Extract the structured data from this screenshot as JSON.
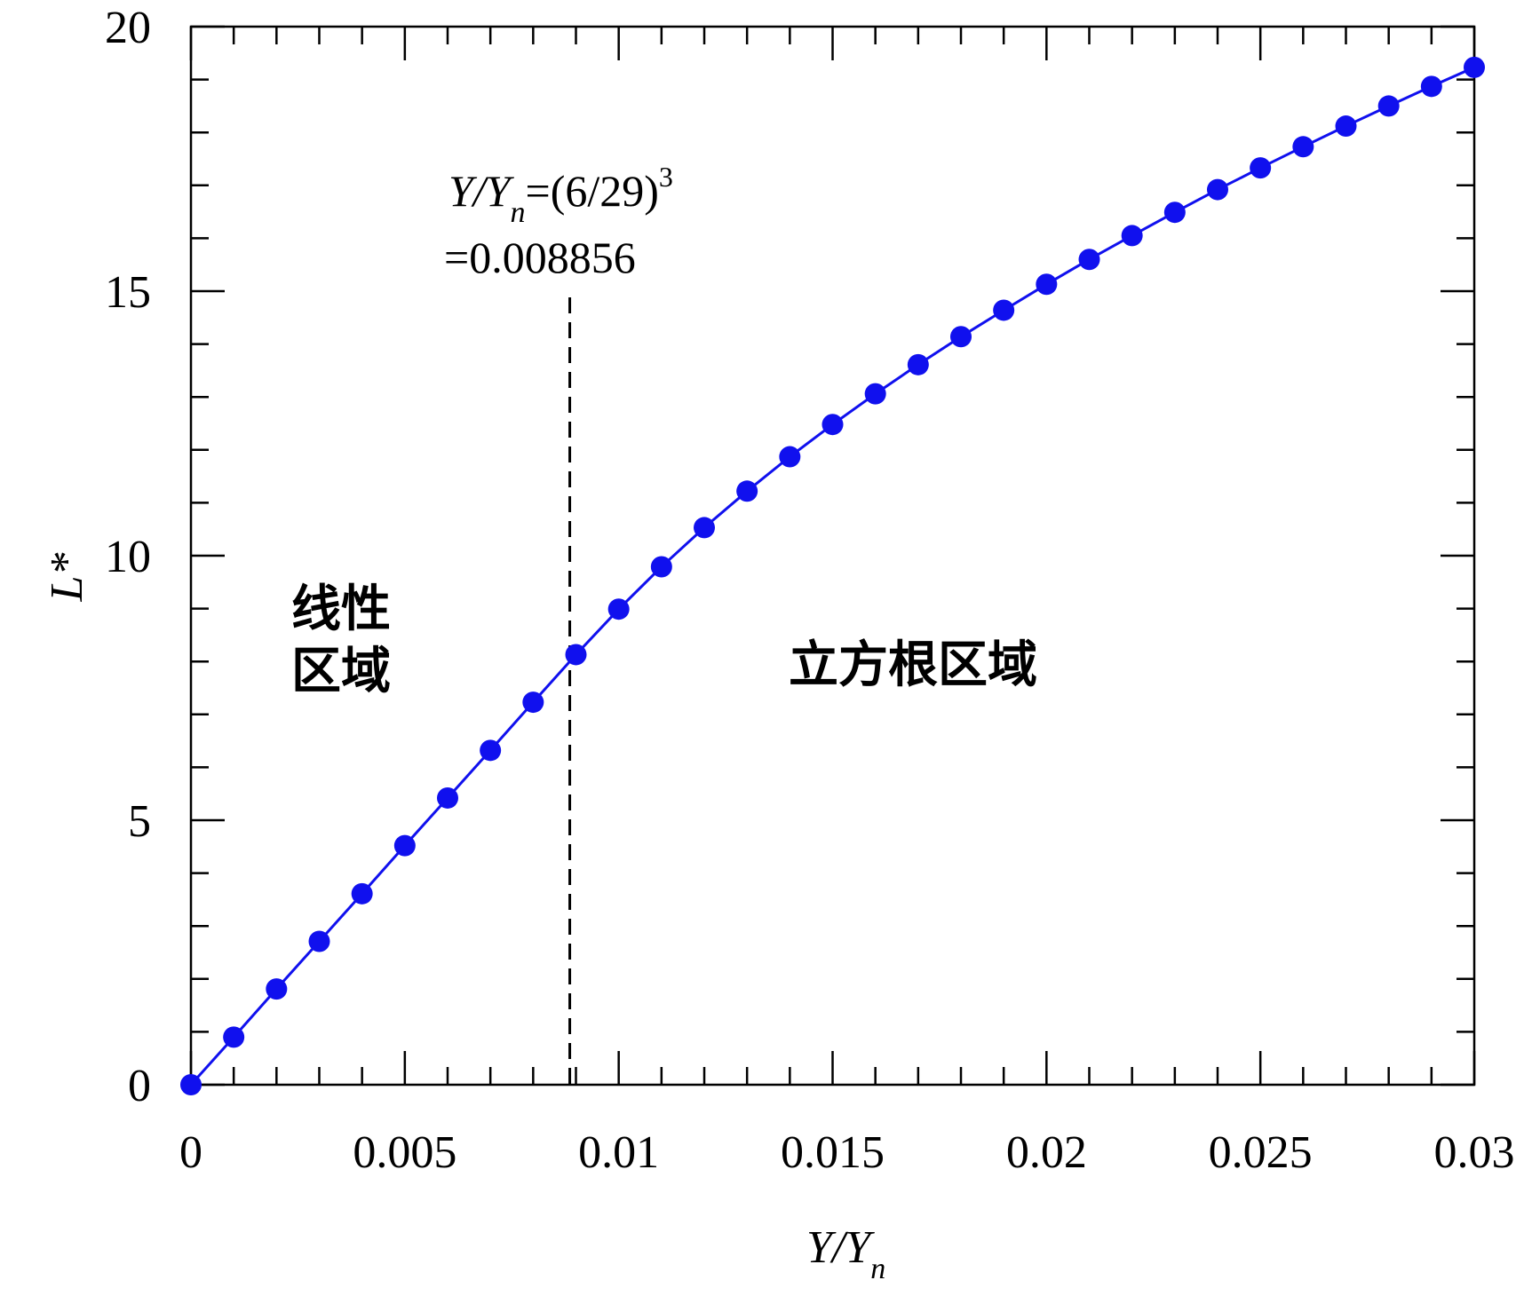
{
  "chart_data": {
    "type": "line",
    "title": "",
    "xlabel": {
      "base": "Y/Y",
      "sub": "n"
    },
    "ylabel": "L*",
    "xlim": [
      0,
      0.03
    ],
    "ylim": [
      0,
      20
    ],
    "grid": false,
    "x_ticks": [
      {
        "value": 0,
        "label": "0"
      },
      {
        "value": 0.005,
        "label": "0.005"
      },
      {
        "value": 0.01,
        "label": "0.01"
      },
      {
        "value": 0.015,
        "label": "0.015"
      },
      {
        "value": 0.02,
        "label": "0.02"
      },
      {
        "value": 0.025,
        "label": "0.025"
      },
      {
        "value": 0.03,
        "label": "0.03"
      }
    ],
    "x_minor_step": 0.001,
    "y_ticks": [
      {
        "value": 0,
        "label": "0"
      },
      {
        "value": 5,
        "label": "5"
      },
      {
        "value": 10,
        "label": "10"
      },
      {
        "value": 15,
        "label": "15"
      },
      {
        "value": 20,
        "label": "20"
      }
    ],
    "y_minor_step": 1,
    "series": [
      {
        "color": "#1010ee",
        "x": [
          0,
          0.001,
          0.002,
          0.003,
          0.004,
          0.005,
          0.006,
          0.007,
          0.008,
          0.009,
          0.01,
          0.011,
          0.012,
          0.013,
          0.014,
          0.015,
          0.016,
          0.017,
          0.018,
          0.019,
          0.02,
          0.021,
          0.022,
          0.023,
          0.024,
          0.025,
          0.026,
          0.027,
          0.028,
          0.029,
          0.03
        ],
        "y": [
          0,
          0.9,
          1.81,
          2.71,
          3.61,
          4.52,
          5.42,
          6.32,
          7.23,
          8.13,
          8.99,
          9.79,
          10.53,
          11.22,
          11.87,
          12.48,
          13.06,
          13.61,
          14.14,
          14.64,
          15.13,
          15.6,
          16.05,
          16.49,
          16.92,
          17.33,
          17.73,
          18.12,
          18.5,
          18.87,
          19.23
        ]
      }
    ],
    "threshold": {
      "x": 0.008856,
      "line_style": "dashed",
      "label_line1": {
        "base": "Y/Y",
        "sub": "n",
        "rest": "=(6/29)",
        "sup": "3"
      },
      "label_line2": "=0.008856"
    },
    "annotations": [
      {
        "text_lines": [
          "线性",
          "区域"
        ],
        "region": "linear"
      },
      {
        "text_lines": [
          "立方根区域"
        ],
        "region": "cube-root"
      }
    ]
  }
}
